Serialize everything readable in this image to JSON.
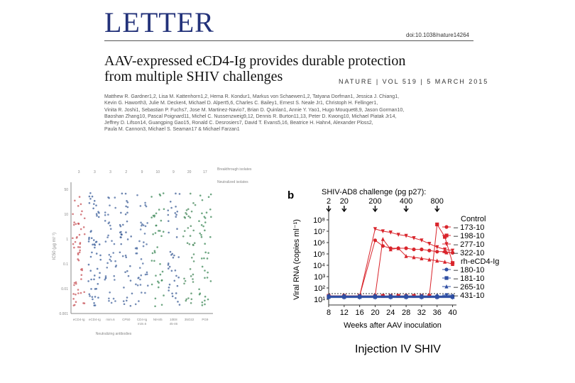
{
  "header": {
    "section": "LETTER",
    "doi": "doi:10.1038/nature14264",
    "journal_line": "NATURE | VOL 519 | 5 MARCH 2015"
  },
  "article": {
    "title_line1": "AAV-expressed eCD4-Ig provides durable protection",
    "title_line2": "from multiple SHIV challenges",
    "authors": [
      "Matthew R. Gardner1,2, Lisa M. Kattenhorn1,2, Hema R. Kondur1, Markus von Schaewen1,2, Tatyana Dorfman1, Jessica J. Chiang1,",
      "Kevin G. Haworth3, Julie M. Decker4, Michael D. Alpert5,6, Charles C. Bailey1, Ernest S. Neale Jr1, Christoph H. Fellinger1,",
      "Vinita R. Joshi1, Sebastian P. Fuchs7, Jose M. Martinez-Navio7, Brian D. Quinlan1, Annie Y. Yao1, Hugo Mouquet8,9, Jason Gorman10,",
      "Baoshan Zhang10, Pascal Poignard11, Michel C. Nussenzweig9,12, Dennis R. Burton11,13, Peter D. Kwong10, Michael Piatak Jr14,",
      "Jeffrey D. Lifson14, Guangping Gao15, Ronald C. Desrosiers7, David T. Evans5,16, Beatrice H. Hahn4, Alexander Ploss2,",
      "Paula M. Cannon3, Michael S. Seaman17 & Michael Farzan1"
    ]
  },
  "figure_a": {
    "legend": [
      "Breakthrough isolates",
      "Neutralized isolates"
    ],
    "top_values": [
      "3",
      "3",
      "3",
      "2",
      "9",
      "10",
      "9",
      "20",
      "17"
    ],
    "categories": [
      "eCD4-Ig",
      "eCD4-Ig",
      "mim.6",
      "CP50",
      "CD4-Ig",
      "NIH45",
      "10E8",
      "35O22",
      "PG9"
    ],
    "categories_sub": [
      "",
      "",
      "",
      "",
      "mim.6",
      "",
      "45-46",
      "",
      ""
    ],
    "xlabel": "Neutralizing antibodies",
    "ylabel": "IC50 (µg ml⁻¹)",
    "ytick_labels": [
      "50",
      "10",
      "1",
      "0.1",
      "0.01",
      "0.001"
    ]
  },
  "chart_data": {
    "type": "line",
    "title": "SHIV-AD8 challenge (pg p27):",
    "challenge_weeks": [
      "2",
      "20",
      "200",
      "400",
      "800"
    ],
    "challenge_labels": [
      "2",
      "20",
      "200",
      "400",
      "800"
    ],
    "xlabel": "Weeks after AAV inoculation",
    "ylabel": "Viral RNA (copies ml⁻¹)",
    "x_ticks": [
      8,
      12,
      16,
      20,
      24,
      28,
      32,
      36,
      40
    ],
    "y_ticks": [
      "10⁸",
      "10⁷",
      "10⁶",
      "10⁵",
      "10⁴",
      "10³",
      "10²",
      "10¹"
    ],
    "xlim": [
      8,
      41
    ],
    "ylim_log10": [
      0.5,
      8.5
    ],
    "detection_limit_log10": 1.5,
    "groups": [
      {
        "label": "Control",
        "color": "#d9252c"
      },
      {
        "label": "rh-eCD4-Ig",
        "color": "#2f4fa3"
      }
    ],
    "series": [
      {
        "name": "173-10",
        "group": "Control",
        "color": "#d9252c",
        "marker": "circle",
        "x": [
          8,
          12,
          16,
          20,
          22,
          24,
          26,
          28,
          30,
          32,
          34,
          36,
          38,
          40
        ],
        "y_log10": [
          1.3,
          1.3,
          1.3,
          6.2,
          5.7,
          5.5,
          5.5,
          5.5,
          5.4,
          5.4,
          5.3,
          5.2,
          5.2,
          5.1
        ]
      },
      {
        "name": "198-10",
        "group": "Control",
        "color": "#d9252c",
        "marker": "square",
        "x": [
          8,
          12,
          16,
          20,
          22,
          24,
          26,
          28,
          30,
          32,
          34,
          36,
          38,
          40
        ],
        "y_log10": [
          1.3,
          1.3,
          1.3,
          1.3,
          1.3,
          1.3,
          1.3,
          1.3,
          1.3,
          1.3,
          1.3,
          7.6,
          6.5,
          4.2
        ]
      },
      {
        "name": "277-10",
        "group": "Control",
        "color": "#d9252c",
        "marker": "triangle-down",
        "x": [
          8,
          12,
          16,
          20,
          22,
          24,
          26,
          28,
          30,
          32,
          34,
          36,
          38,
          40
        ],
        "y_log10": [
          1.3,
          1.3,
          1.3,
          7.2,
          7.0,
          6.9,
          6.7,
          6.6,
          6.4,
          6.2,
          5.9,
          5.6,
          5.4,
          5.3
        ]
      },
      {
        "name": "322-10",
        "group": "Control",
        "color": "#d9252c",
        "marker": "triangle-up",
        "x": [
          8,
          12,
          16,
          20,
          22,
          24,
          26,
          28,
          30,
          32,
          34,
          36,
          38,
          40
        ],
        "y_log10": [
          1.3,
          1.3,
          1.3,
          1.3,
          6.3,
          5.4,
          5.5,
          4.8,
          4.7,
          4.6,
          4.5,
          4.4,
          4.3,
          4.1
        ]
      },
      {
        "name": "180-10",
        "group": "rh-eCD4-Ig",
        "color": "#2f4fa3",
        "marker": "circle",
        "x": [
          8,
          12,
          16,
          20,
          24,
          28,
          32,
          36,
          40
        ],
        "y_log10": [
          1.3,
          1.3,
          1.3,
          1.3,
          1.3,
          1.3,
          1.3,
          1.3,
          1.3
        ]
      },
      {
        "name": "181-10",
        "group": "rh-eCD4-Ig",
        "color": "#2f4fa3",
        "marker": "square",
        "x": [
          8,
          12,
          16,
          20,
          24,
          28,
          32,
          36,
          40
        ],
        "y_log10": [
          1.2,
          1.2,
          1.2,
          1.2,
          1.2,
          1.2,
          1.2,
          1.2,
          1.2
        ]
      },
      {
        "name": "265-10",
        "group": "rh-eCD4-Ig",
        "color": "#2f4fa3",
        "marker": "triangle-up",
        "x": [
          8,
          12,
          16,
          20,
          24,
          28,
          32,
          36,
          40
        ],
        "y_log10": [
          1.25,
          1.25,
          1.25,
          1.25,
          1.25,
          1.25,
          1.25,
          1.25,
          1.25
        ]
      },
      {
        "name": "431-10",
        "group": "rh-eCD4-Ig",
        "color": "#2f4fa3",
        "marker": "triangle-down",
        "x": [
          8,
          12,
          16,
          20,
          24,
          28,
          32,
          36,
          40
        ],
        "y_log10": [
          1.15,
          1.15,
          1.15,
          1.15,
          1.15,
          1.15,
          1.15,
          1.15,
          1.15
        ]
      }
    ]
  },
  "figure_b": {
    "panel_label": "b"
  },
  "caption": "Injection IV SHIV"
}
